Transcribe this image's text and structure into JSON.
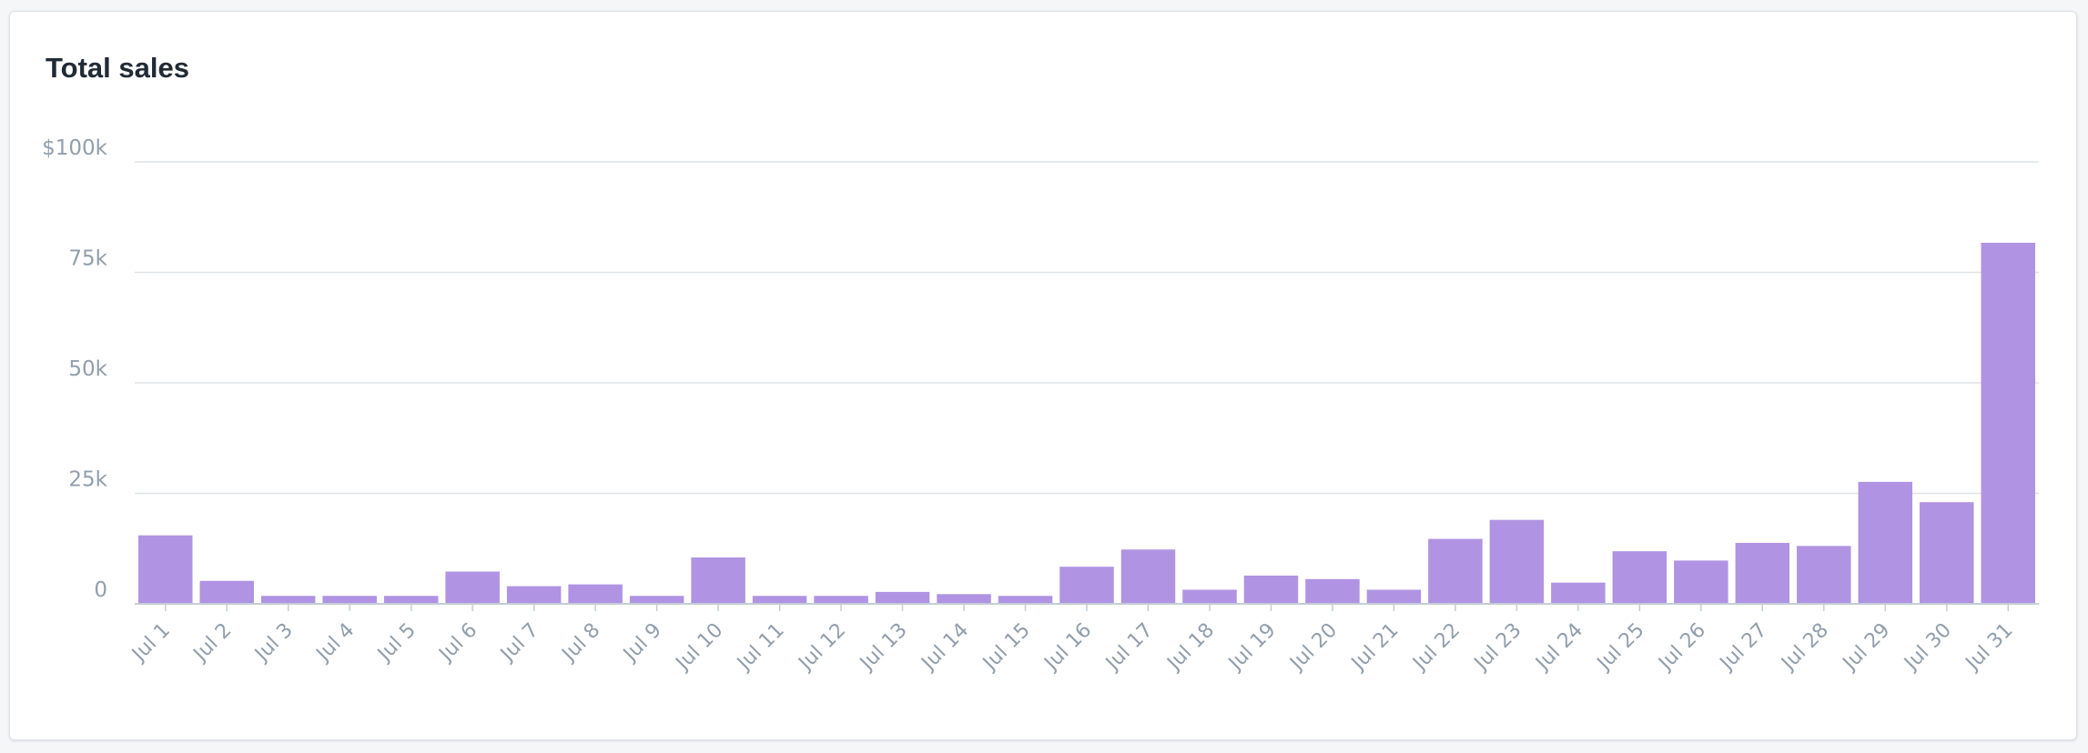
{
  "card": {
    "title": "Total sales"
  },
  "chart_data": {
    "type": "bar",
    "title": "Total sales",
    "xlabel": "",
    "ylabel": "",
    "ylim": [
      0,
      100000
    ],
    "yticks": [
      {
        "value": 0,
        "label": "0"
      },
      {
        "value": 25000,
        "label": "25k"
      },
      {
        "value": 50000,
        "label": "50k"
      },
      {
        "value": 75000,
        "label": "75k"
      },
      {
        "value": 100000,
        "label": "$100k"
      }
    ],
    "grid": true,
    "categories": [
      "Jul 1",
      "Jul 2",
      "Jul 3",
      "Jul 4",
      "Jul 5",
      "Jul 6",
      "Jul 7",
      "Jul 8",
      "Jul 9",
      "Jul 10",
      "Jul 11",
      "Jul 12",
      "Jul 13",
      "Jul 14",
      "Jul 15",
      "Jul 16",
      "Jul 17",
      "Jul 18",
      "Jul 19",
      "Jul 20",
      "Jul 21",
      "Jul 22",
      "Jul 23",
      "Jul 24",
      "Jul 25",
      "Jul 26",
      "Jul 27",
      "Jul 28",
      "Jul 29",
      "Jul 30",
      "Jul 31"
    ],
    "values": [
      15500,
      5200,
      1800,
      1800,
      1800,
      7300,
      4000,
      4400,
      1800,
      10500,
      1800,
      1800,
      2700,
      2200,
      1800,
      8400,
      12300,
      3200,
      6400,
      5600,
      3200,
      14700,
      19000,
      4800,
      11900,
      9800,
      13800,
      13100,
      27600,
      23000,
      81700
    ],
    "color": "#b093e2",
    "gridColor": "#dfe3e8",
    "axisColor": "#c4cdd5",
    "labelColor": "#919eab"
  }
}
